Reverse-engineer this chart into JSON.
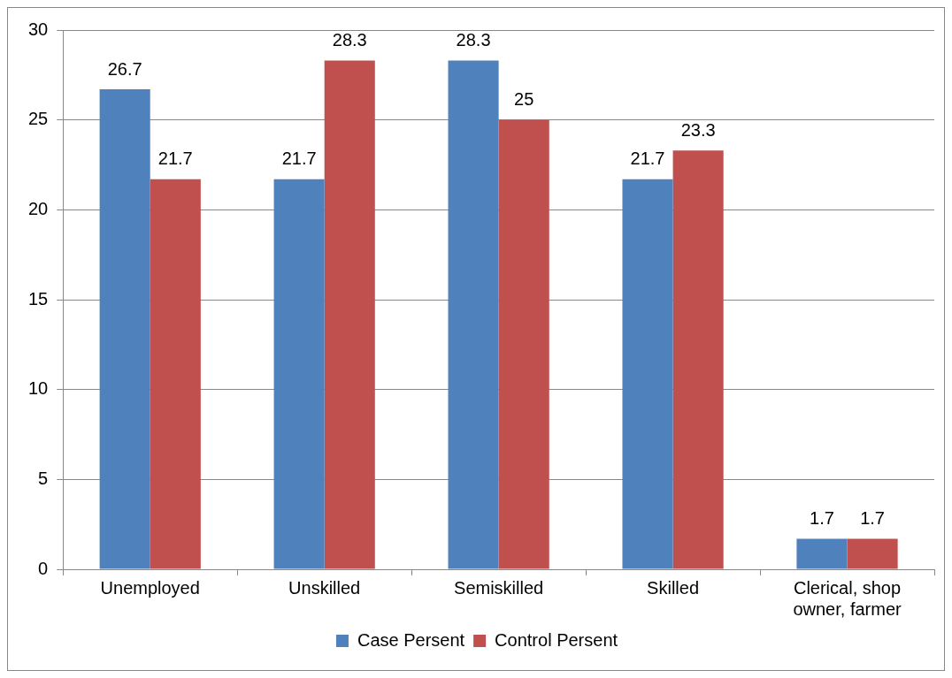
{
  "chart_data": {
    "type": "bar",
    "categories": [
      "Unemployed",
      "Unskilled",
      "Semiskilled",
      "Skilled",
      "Clerical, shop owner, farmer"
    ],
    "series": [
      {
        "name": "Case Persent",
        "color": "#4f81bd",
        "values": [
          26.7,
          21.7,
          28.3,
          21.7,
          1.7
        ]
      },
      {
        "name": "Control Persent",
        "color": "#c0504d",
        "values": [
          21.7,
          28.3,
          25,
          23.3,
          1.7
        ]
      }
    ],
    "ylim": [
      0,
      30
    ],
    "yticks": [
      0,
      5,
      10,
      15,
      20,
      25,
      30
    ],
    "grid": "y",
    "legend": "bottom",
    "data_labels": true
  }
}
